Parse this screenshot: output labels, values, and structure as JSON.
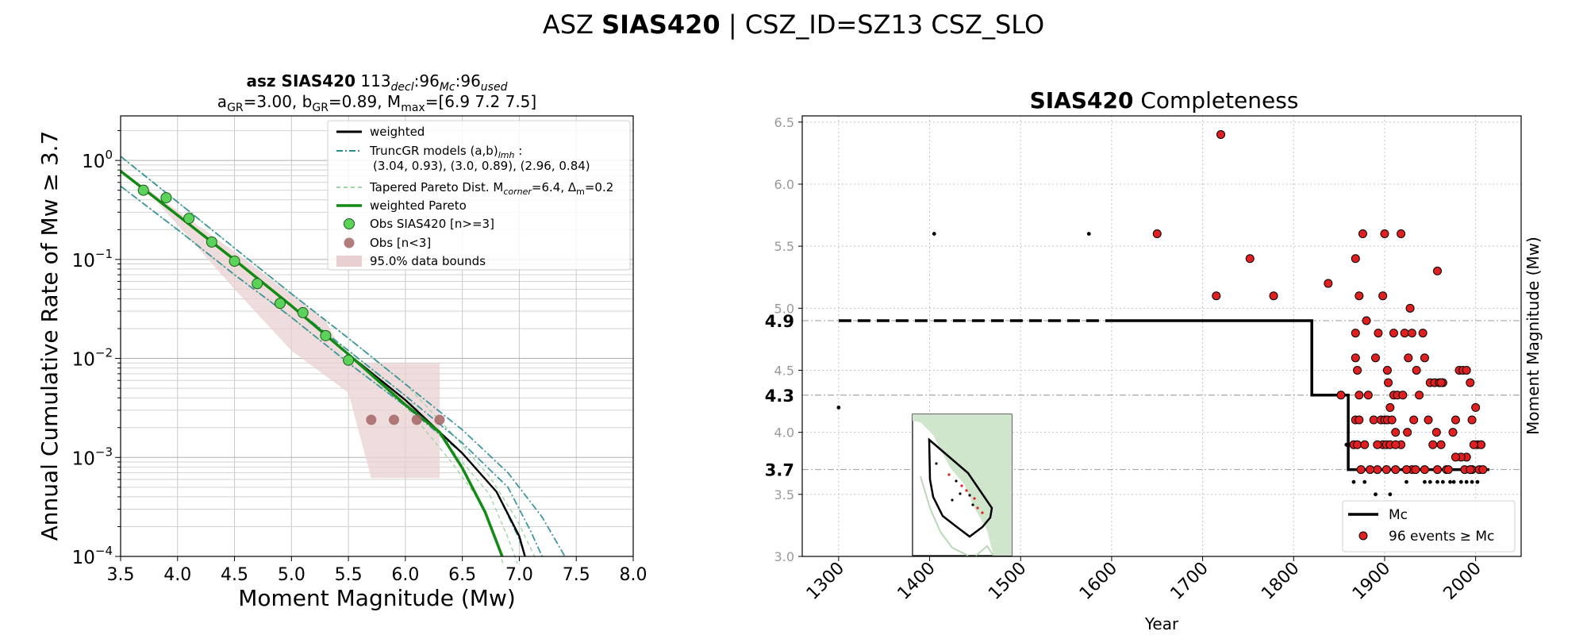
{
  "figure": {
    "title_prefix": "ASZ ",
    "title_bold": "SIAS420",
    "title_suffix": " | CSZ_ID=SZ13 CSZ_SLO"
  },
  "chart_data": [
    {
      "type": "line",
      "panel": "magnitude-frequency",
      "title_line1": {
        "bold": "asz SIAS420",
        "rest": "  113",
        "sub1": "decl",
        "t2": ":96",
        "sub2": "Mc",
        "t3": ":96",
        "sub3": "used"
      },
      "title_line2": {
        "a": "a",
        "a_sub": "GR",
        "a_val": "=3.00,  b",
        "b_sub": "GR",
        "b_val": "=0.89, M",
        "m_sub": "max",
        "m_val": "=[6.9 7.2 7.5]"
      },
      "xlabel": "Moment Magnitude (Mw)",
      "ylabel": "Annual Cumulative Rate of Mw  ≥  3.7",
      "xlim": [
        3.5,
        8.0
      ],
      "ylim_log10": [
        -4,
        0.45
      ],
      "x_ticks": [
        "3.5",
        "4.0",
        "4.5",
        "5.0",
        "5.5",
        "6.0",
        "6.5",
        "7.0",
        "7.5",
        "8.0"
      ],
      "y_ticks": [
        {
          "base": "10",
          "exp": "0"
        },
        {
          "base": "10",
          "exp": "−1"
        },
        {
          "base": "10",
          "exp": "−2"
        },
        {
          "base": "10",
          "exp": "−3"
        },
        {
          "base": "10",
          "exp": "−4"
        }
      ],
      "y_scale": "log",
      "grid": true,
      "legend_position": "top-right",
      "legend": {
        "weighted": "weighted",
        "truncgr": "TruncGR models (a,b)",
        "truncgr_sub": "lmh",
        "truncgr_tail": " :",
        "truncgr_line2": "(3.04, 0.93), (3.0, 0.89), (2.96, 0.84)",
        "tapered_a": "Tapered Pareto Dist. M",
        "tapered_sub1": "corner",
        "tapered_b": "=6.4, Δ",
        "tapered_sub2": "m",
        "tapered_c": "=0.2",
        "weighted_pareto": "weighted Pareto",
        "obs": "Obs SIAS420 [n>=3]",
        "obs_low": "Obs [n<3]",
        "bounds": "95.0% data bounds"
      },
      "colors": {
        "weighted": "#000000",
        "truncgr": "#2a8c95",
        "pareto": "#9fd3a8",
        "weighted_pareto": "#138a13",
        "obs": "#5bd35b",
        "obs_low": "#a56565",
        "bounds": "#e9d0d0"
      },
      "series": [
        {
          "name": "Obs SIAS420 [n>=3]",
          "points": [
            [
              3.7,
              0.5
            ],
            [
              3.9,
              0.42
            ],
            [
              4.1,
              0.26
            ],
            [
              4.3,
              0.15
            ],
            [
              4.5,
              0.096
            ],
            [
              4.7,
              0.057
            ],
            [
              4.9,
              0.036
            ],
            [
              5.1,
              0.029
            ],
            [
              5.3,
              0.017
            ],
            [
              5.5,
              0.0096
            ]
          ]
        },
        {
          "name": "Obs [n<3]",
          "points": [
            [
              5.7,
              0.0024
            ],
            [
              5.9,
              0.0024
            ],
            [
              6.1,
              0.0024
            ],
            [
              6.3,
              0.0024
            ]
          ]
        },
        {
          "name": "weighted",
          "points": [
            [
              3.5,
              0.78
            ],
            [
              4.0,
              0.28
            ],
            [
              4.5,
              0.099
            ],
            [
              5.0,
              0.034
            ],
            [
              5.5,
              0.011
            ],
            [
              6.0,
              0.0038
            ],
            [
              6.5,
              0.0011
            ],
            [
              6.8,
              0.00045
            ],
            [
              7.0,
              0.00016
            ],
            [
              7.05,
              0.0001
            ]
          ]
        },
        {
          "name": "weighted Pareto",
          "points": [
            [
              3.5,
              0.78
            ],
            [
              4.0,
              0.28
            ],
            [
              4.5,
              0.099
            ],
            [
              5.0,
              0.034
            ],
            [
              5.5,
              0.011
            ],
            [
              6.0,
              0.0034
            ],
            [
              6.3,
              0.0018
            ],
            [
              6.5,
              0.00078
            ],
            [
              6.7,
              0.00028
            ],
            [
              6.85,
              0.0001
            ]
          ]
        },
        {
          "name": "TruncGR models (a,b)lmh",
          "lines": [
            [
              [
                3.5,
                1.1
              ],
              [
                4.0,
                0.38
              ],
              [
                4.5,
                0.13
              ],
              [
                5.0,
                0.045
              ],
              [
                5.5,
                0.016
              ],
              [
                6.0,
                0.0055
              ],
              [
                6.5,
                0.0019
              ],
              [
                6.9,
                0.0007
              ],
              [
                7.2,
                0.00025
              ],
              [
                7.4,
                0.0001
              ]
            ],
            [
              [
                3.5,
                0.78
              ],
              [
                4.0,
                0.28
              ],
              [
                4.5,
                0.099
              ],
              [
                5.0,
                0.034
              ],
              [
                5.5,
                0.012
              ],
              [
                6.0,
                0.0042
              ],
              [
                6.5,
                0.0014
              ],
              [
                6.9,
                0.0005
              ],
              [
                7.1,
                0.00018
              ],
              [
                7.2,
                0.0001
              ]
            ],
            [
              [
                3.5,
                0.55
              ],
              [
                4.0,
                0.2
              ],
              [
                4.5,
                0.07
              ],
              [
                5.0,
                0.026
              ],
              [
                5.5,
                0.009
              ],
              [
                6.0,
                0.0033
              ],
              [
                6.5,
                0.0011
              ],
              [
                6.8,
                0.00045
              ],
              [
                7.0,
                0.00015
              ],
              [
                7.05,
                0.0001
              ]
            ]
          ]
        },
        {
          "name": "95.0% data bounds",
          "upper": [
            [
              3.7,
              0.55
            ],
            [
              4.5,
              0.12
            ],
            [
              5.3,
              0.024
            ],
            [
              5.5,
              0.009
            ],
            [
              6.3,
              0.009
            ]
          ],
          "lower": [
            [
              6.3,
              0.00062
            ],
            [
              5.7,
              0.00062
            ],
            [
              5.5,
              0.0045
            ],
            [
              5.0,
              0.012
            ],
            [
              4.5,
              0.05
            ],
            [
              3.9,
              0.3
            ]
          ]
        }
      ]
    },
    {
      "type": "scatter",
      "panel": "completeness",
      "title_bold": "SIAS420",
      "title_rest": " Completeness",
      "xlabel": "Year",
      "ylabel": "Moment Magnitude (Mw)",
      "xlim": [
        1260,
        2050
      ],
      "ylim": [
        3.0,
        6.55
      ],
      "x_ticks": [
        "1300",
        "1400",
        "1500",
        "1600",
        "1700",
        "1800",
        "1900",
        "2000"
      ],
      "y_ticks": [
        "3.0",
        "3.5",
        "4.0",
        "4.5",
        "5.0",
        "5.5",
        "6.0",
        "6.5"
      ],
      "mc_levels": [
        "4.9",
        "4.3",
        "3.7"
      ],
      "grid": true,
      "legend_position": "lower-right",
      "legend": {
        "mc": "Mc",
        "events": "96 events  ≥  Mc"
      },
      "colors": {
        "mc": "#000000",
        "events": "#e02020",
        "below": "#000000"
      },
      "mc_step": [
        [
          1300,
          4.9
        ],
        [
          1820,
          4.9
        ],
        [
          1820,
          4.3
        ],
        [
          1860,
          4.3
        ],
        [
          1860,
          3.7
        ],
        [
          2015,
          3.7
        ]
      ],
      "events_above_mc": [
        [
          1650,
          5.6
        ],
        [
          1720,
          6.4
        ],
        [
          1715,
          5.1
        ],
        [
          1752,
          5.4
        ],
        [
          1778,
          5.1
        ],
        [
          1838,
          5.2
        ],
        [
          1852,
          4.3
        ],
        [
          1868,
          5.4
        ],
        [
          1872,
          5.1
        ],
        [
          1876,
          5.6
        ],
        [
          1880,
          4.9
        ],
        [
          1868,
          4.8
        ],
        [
          1868,
          4.6
        ],
        [
          1870,
          4.5
        ],
        [
          1872,
          4.3
        ],
        [
          1868,
          4.1
        ],
        [
          1872,
          4.1
        ],
        [
          1866,
          3.9
        ],
        [
          1870,
          3.9
        ],
        [
          1878,
          3.9
        ],
        [
          1882,
          4.3
        ],
        [
          1888,
          4.1
        ],
        [
          1890,
          4.6
        ],
        [
          1893,
          4.8
        ],
        [
          1898,
          5.1
        ],
        [
          1900,
          5.6
        ],
        [
          1903,
          4.5
        ],
        [
          1906,
          4.2
        ],
        [
          1896,
          4.1
        ],
        [
          1898,
          3.9
        ],
        [
          1902,
          3.9
        ],
        [
          1906,
          3.9
        ],
        [
          1900,
          4.1
        ],
        [
          1903,
          4.1
        ],
        [
          1908,
          4.1
        ],
        [
          1910,
          4.3
        ],
        [
          1914,
          4.3
        ],
        [
          1910,
          4.8
        ],
        [
          1918,
          5.6
        ],
        [
          1922,
          4.8
        ],
        [
          1926,
          4.6
        ],
        [
          1928,
          5.0
        ],
        [
          1930,
          4.8
        ],
        [
          1935,
          4.5
        ],
        [
          1932,
          4.1
        ],
        [
          1925,
          4.0
        ],
        [
          1918,
          3.9
        ],
        [
          1912,
          3.9
        ],
        [
          1930,
          3.7
        ],
        [
          1938,
          4.3
        ],
        [
          1942,
          4.8
        ],
        [
          1950,
          4.4
        ],
        [
          1955,
          4.4
        ],
        [
          1958,
          5.3
        ],
        [
          1960,
          4.4
        ],
        [
          1964,
          4.4
        ],
        [
          1948,
          4.1
        ],
        [
          1953,
          3.9
        ],
        [
          1957,
          4.0
        ],
        [
          1962,
          3.9
        ],
        [
          1968,
          3.7
        ],
        [
          1975,
          4.0
        ],
        [
          1978,
          4.1
        ],
        [
          1982,
          4.5
        ],
        [
          1986,
          4.5
        ],
        [
          1990,
          4.5
        ],
        [
          1994,
          4.4
        ],
        [
          1996,
          4.1
        ],
        [
          2000,
          4.2
        ],
        [
          2002,
          3.9
        ],
        [
          2006,
          3.9
        ],
        [
          1998,
          3.9
        ],
        [
          1996,
          3.7
        ],
        [
          1990,
          3.8
        ],
        [
          1984,
          3.8
        ],
        [
          1978,
          3.8
        ],
        [
          1970,
          3.7
        ],
        [
          1958,
          3.7
        ],
        [
          1944,
          3.7
        ],
        [
          1934,
          3.7
        ],
        [
          1924,
          3.7
        ],
        [
          1912,
          3.7
        ],
        [
          1902,
          3.7
        ],
        [
          1892,
          3.7
        ],
        [
          1884,
          3.7
        ],
        [
          1874,
          3.7
        ],
        [
          1988,
          3.7
        ],
        [
          1994,
          3.7
        ],
        [
          2004,
          3.7
        ],
        [
          2008,
          3.7
        ],
        [
          1920,
          4.3
        ],
        [
          1944,
          4.6
        ],
        [
          1962,
          4.4
        ],
        [
          1892,
          3.9
        ],
        [
          1904,
          4.4
        ],
        [
          1912,
          4.0
        ]
      ],
      "events_below_mc": [
        [
          1300,
          4.2
        ],
        [
          1405,
          5.6
        ],
        [
          1575,
          5.6
        ],
        [
          1858,
          3.9
        ],
        [
          1890,
          3.5
        ],
        [
          1906,
          3.5
        ],
        [
          1924,
          3.6
        ],
        [
          1944,
          3.6
        ],
        [
          1950,
          3.6
        ],
        [
          1958,
          3.6
        ],
        [
          1964,
          3.6
        ],
        [
          1972,
          3.6
        ],
        [
          1976,
          3.6
        ],
        [
          1984,
          3.6
        ],
        [
          1990,
          3.6
        ],
        [
          1996,
          3.6
        ],
        [
          2002,
          3.6
        ],
        [
          1878,
          3.6
        ],
        [
          1866,
          3.6
        ]
      ]
    }
  ],
  "inset_map": {
    "land": "#cfe6cd",
    "border": "#000000"
  }
}
